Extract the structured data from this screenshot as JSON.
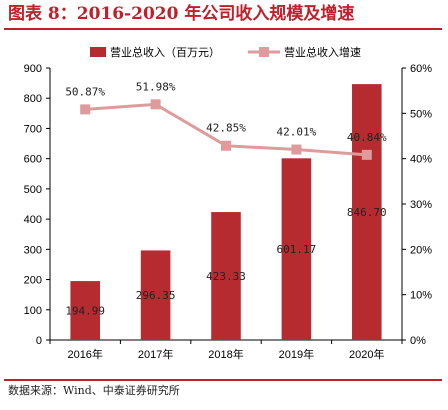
{
  "figure": {
    "title": "图表 8：2016-2020 年公司收入规模及增速",
    "source": "数据来源：Wind、中泰证券研究所"
  },
  "colors": {
    "bar": "#b52b2f",
    "line": "#de9b9b",
    "title": "#c0202a"
  },
  "chart_data": {
    "type": "bar+line",
    "categories": [
      "2016年",
      "2017年",
      "2018年",
      "2019年",
      "2020年"
    ],
    "series": [
      {
        "name": "营业总收入（百万元）",
        "type": "bar",
        "axis": "left",
        "values": [
          194.99,
          296.35,
          423.33,
          601.17,
          846.7
        ],
        "labels": [
          "194.99",
          "296.35",
          "423.33",
          "601.17",
          "846.70"
        ]
      },
      {
        "name": "营业总收入增速",
        "type": "line",
        "axis": "right",
        "values": [
          50.87,
          51.98,
          42.85,
          42.01,
          40.84
        ],
        "labels": [
          "50.87%",
          "51.98%",
          "42.85%",
          "42.01%",
          "40.84%"
        ]
      }
    ],
    "y_left": {
      "range": [
        0,
        900
      ],
      "ticks": [
        "0",
        "100",
        "200",
        "300",
        "400",
        "500",
        "600",
        "700",
        "800",
        "900"
      ]
    },
    "y_right": {
      "range": [
        0,
        60
      ],
      "ticks": [
        "0%",
        "10%",
        "20%",
        "30%",
        "40%",
        "50%",
        "60%"
      ]
    },
    "legend_position": "top",
    "grid": false
  }
}
